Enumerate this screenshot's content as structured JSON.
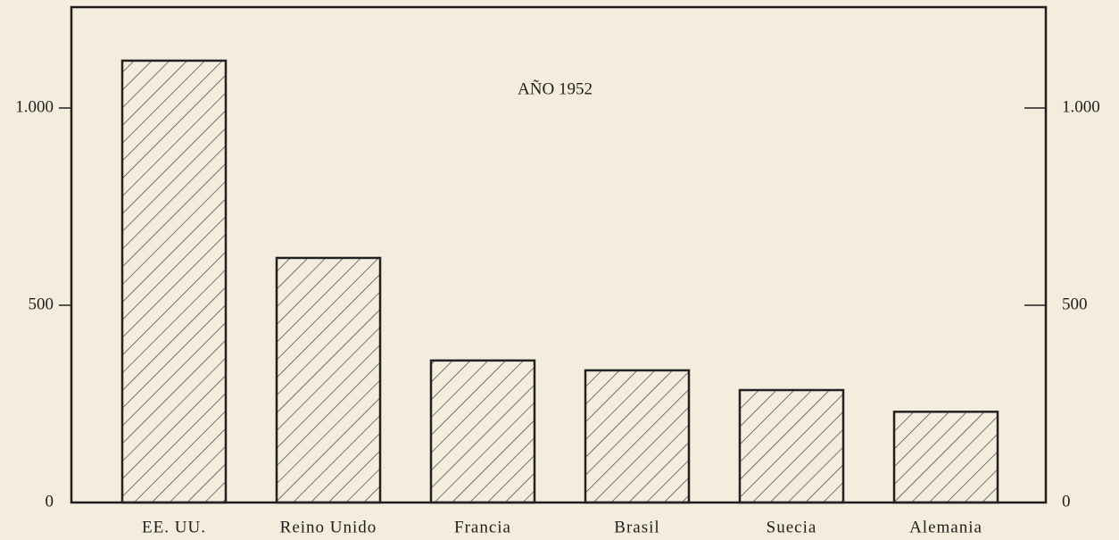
{
  "chart_data": {
    "type": "bar",
    "title": "AÑO 1952",
    "categories": [
      "EE. UU.",
      "Reino Unido",
      "Francia",
      "Brasil",
      "Suecia",
      "Alemania"
    ],
    "values": [
      1120,
      620,
      360,
      335,
      285,
      230
    ],
    "color": "#222222",
    "ylim": [
      0,
      1250
    ],
    "yticks": [
      0,
      500,
      {
        "value": 1000,
        "label": "1.000"
      }
    ],
    "grid": false
  }
}
